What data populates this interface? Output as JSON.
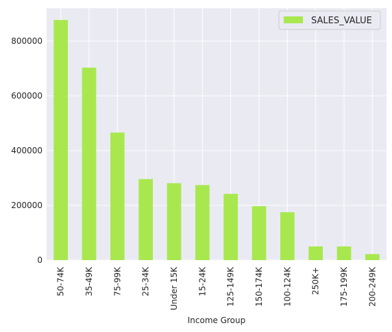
{
  "chart_data": {
    "type": "bar",
    "title": "",
    "xlabel": "Income Group",
    "ylabel": "",
    "categories": [
      "50-74K",
      "35-49K",
      "75-99K",
      "25-34K",
      "Under 15K",
      "15-24K",
      "125-149K",
      "150-174K",
      "100-124K",
      "250K+",
      "175-199K",
      "200-249K"
    ],
    "series": [
      {
        "name": "SALES_VALUE",
        "values": [
          877000,
          703000,
          466000,
          296000,
          281000,
          274000,
          242000,
          197000,
          175000,
          50000,
          50000,
          22000
        ]
      }
    ],
    "ylim": [
      0,
      920000
    ],
    "yticks": [
      0,
      200000,
      400000,
      600000,
      800000
    ],
    "grid": true,
    "legend": "top-right",
    "colors": {
      "bar": "#a8e84e",
      "background": "#eaeaf2",
      "grid": "#ffffff"
    }
  }
}
